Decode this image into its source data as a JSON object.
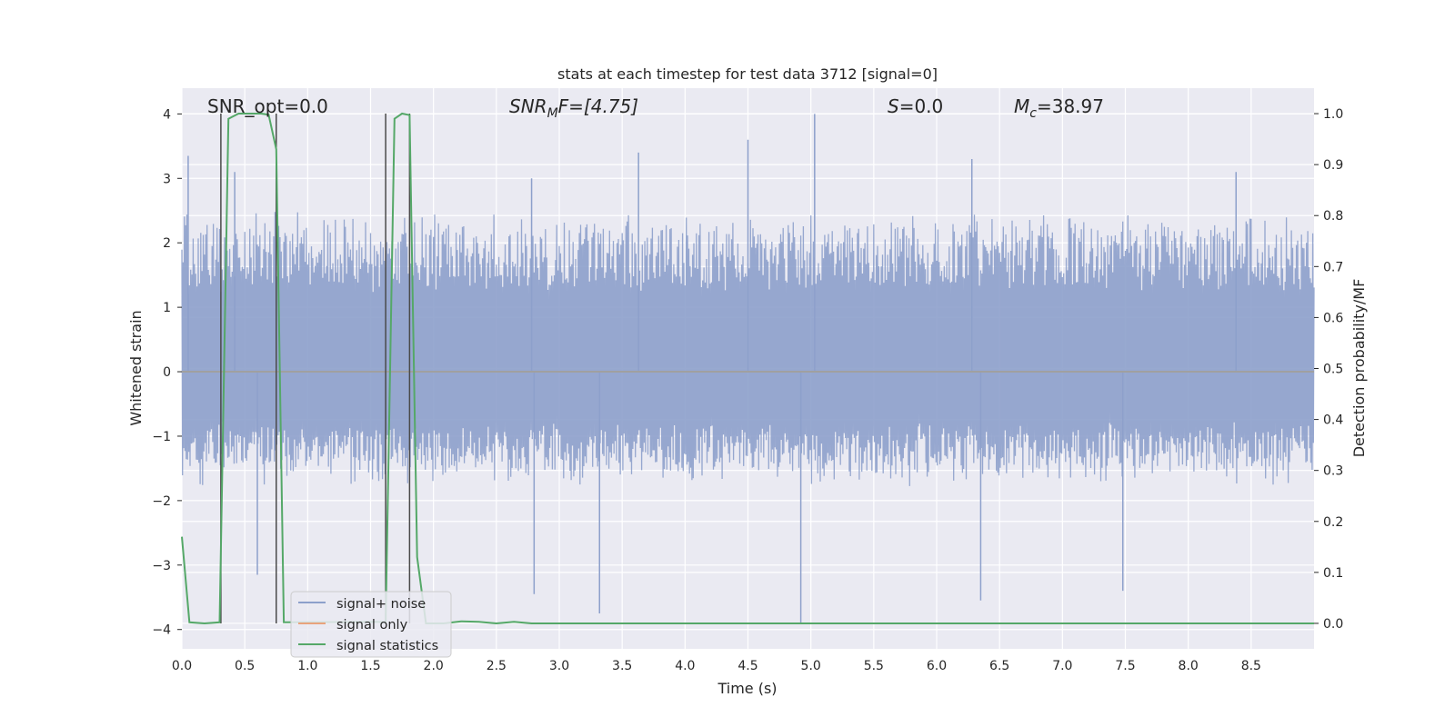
{
  "chart_data": {
    "type": "line",
    "title": "stats at each timestep for test data 3712 [signal=0]",
    "xlabel": "Time (s)",
    "ylabel": "Whitened strain",
    "y2label": "Detection probability/MF",
    "xlim": [
      0.0,
      9.0
    ],
    "ylim": [
      -4.3,
      4.4
    ],
    "y2lim": [
      -0.05,
      1.05
    ],
    "x_ticks": [
      "0.0",
      "0.5",
      "1.0",
      "1.5",
      "2.0",
      "2.5",
      "3.0",
      "3.5",
      "4.0",
      "4.5",
      "5.0",
      "5.5",
      "6.0",
      "6.5",
      "7.0",
      "7.5",
      "8.0",
      "8.5"
    ],
    "y_ticks": [
      "4",
      "3",
      "2",
      "1",
      "0",
      "−1",
      "−2",
      "−3",
      "−4"
    ],
    "y2_ticks": [
      "1.0",
      "0.9",
      "0.8",
      "0.7",
      "0.6",
      "0.5",
      "0.4",
      "0.3",
      "0.2",
      "0.1",
      "0.0"
    ],
    "annotations": {
      "snr_opt": "SNR_opt=0.0",
      "snr_mf_main": "SNR",
      "snr_mf_sub": "M",
      "snr_mf_rest": "F=[4.75]",
      "s_main": "S",
      "s_rest": "=0.0",
      "mc_main": "M",
      "mc_sub": "c",
      "mc_rest": "=38.97"
    },
    "vertical_markers": [
      0.31,
      0.75,
      1.62,
      1.81
    ],
    "series": [
      {
        "name": "signal+ noise",
        "color": "#8da0cb",
        "axis": "left",
        "pattern": "white-noise",
        "x_range": [
          0.0,
          9.0
        ],
        "envelope_upper": [
          2.2,
          2.5
        ],
        "envelope_lower": [
          -1.4,
          -1.8
        ],
        "peak_spikes": [
          {
            "x": 0.05,
            "y": 3.35
          },
          {
            "x": 0.42,
            "y": 3.1
          },
          {
            "x": 0.75,
            "y": 3.4
          },
          {
            "x": 2.78,
            "y": 3.0
          },
          {
            "x": 3.63,
            "y": 3.4
          },
          {
            "x": 4.5,
            "y": 3.6
          },
          {
            "x": 5.03,
            "y": 4.0
          },
          {
            "x": 6.28,
            "y": 3.3
          },
          {
            "x": 8.38,
            "y": 3.1
          },
          {
            "x": 0.6,
            "y": -3.15
          },
          {
            "x": 3.32,
            "y": -3.75
          },
          {
            "x": 4.92,
            "y": -3.9
          },
          {
            "x": 6.35,
            "y": -3.55
          },
          {
            "x": 7.48,
            "y": -3.4
          },
          {
            "x": 2.8,
            "y": -3.45
          }
        ]
      },
      {
        "name": "signal only",
        "color": "#e8a37c",
        "axis": "left",
        "x": [
          0.0,
          9.0
        ],
        "y": [
          0.0,
          0.0
        ]
      },
      {
        "name": "signal statistics",
        "color": "#55a868",
        "axis": "right",
        "x": [
          0.0,
          0.06,
          0.18,
          0.3,
          0.37,
          0.45,
          0.52,
          0.58,
          0.63,
          0.69,
          0.75,
          0.81,
          1.55,
          1.62,
          1.69,
          1.75,
          1.81,
          1.87,
          1.94,
          2.08,
          2.22,
          2.36,
          2.5,
          2.64,
          2.78,
          9.0
        ],
        "y": [
          0.17,
          0.002,
          0.0,
          0.002,
          0.99,
          1.0,
          1.0,
          1.0,
          1.0,
          0.998,
          0.93,
          0.002,
          0.003,
          0.002,
          0.99,
          1.0,
          0.997,
          0.13,
          0.0,
          0.0,
          0.004,
          0.003,
          0.0,
          0.003,
          0.0,
          0.0
        ]
      }
    ],
    "legend": {
      "placement": "lower-left",
      "entries": [
        "signal+ noise",
        "signal only",
        "signal statistics"
      ]
    },
    "grid": true
  }
}
